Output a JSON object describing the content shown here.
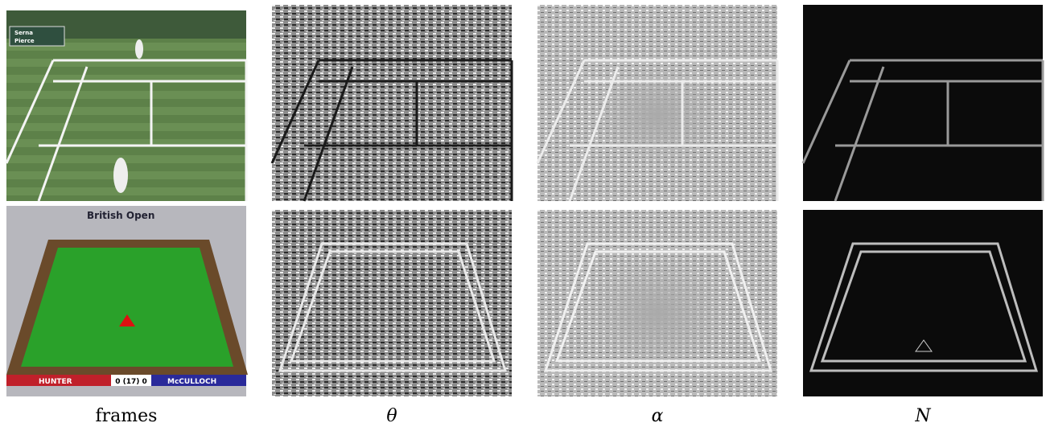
{
  "captions": [
    "frames",
    "θ",
    "α",
    "N"
  ],
  "overlays": {
    "tennis": [
      "Serna",
      "Pierce"
    ],
    "snooker": {
      "banner": "British Open",
      "left_player": "HUNTER",
      "score": "0 (17) 0",
      "right_player": "McCULLOCH"
    }
  }
}
